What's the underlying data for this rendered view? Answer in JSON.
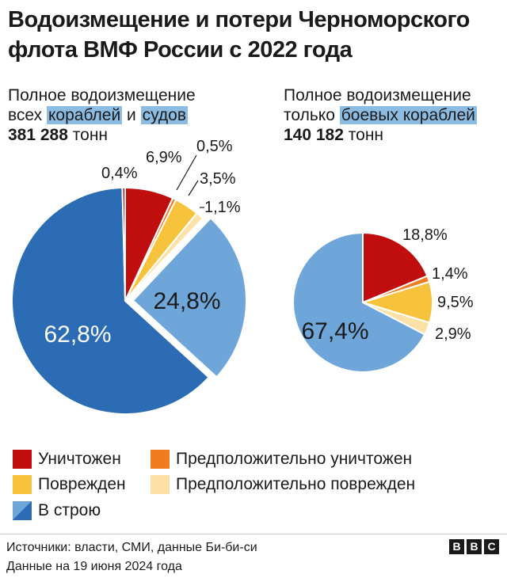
{
  "title": "Водоизмещение и потери Черноморского флота ВМФ России с 2022 года",
  "left": {
    "line1": "Полное водоизмещение",
    "line2_a": "всех ",
    "line2_b": "кораблей",
    "line2_c": " и ",
    "line2_d": "судов",
    "total_num": "381 288",
    "total_unit": " тонн"
  },
  "right": {
    "line1": "Полное водоизмещение",
    "line2_a": "только ",
    "line2_b": "боевых кораблей",
    "total_num": "140 182",
    "total_unit": " тонн"
  },
  "colors": {
    "destroyed": "#c00e0e",
    "presumed_destroyed": "#f07c22",
    "damaged": "#f7c33c",
    "presumed_damaged": "#fbe1a6",
    "in_service_ships": "#2b6cb4",
    "in_service_vessels": "#6ea6da",
    "in_service_combat": "#6ea6da"
  },
  "chart_data": [
    {
      "type": "pie",
      "name": "all",
      "slices": [
        {
          "key": "destroyed",
          "value": 6.9,
          "label": "6,9%"
        },
        {
          "key": "presumed_destroyed",
          "value": 0.5,
          "label": "0,5%"
        },
        {
          "key": "damaged",
          "value": 3.5,
          "label": "3,5%"
        },
        {
          "key": "presumed_damaged",
          "value": 1.1,
          "label": "1,1%"
        },
        {
          "key": "in_service_vessels",
          "value": 24.8,
          "label": "24,8%"
        },
        {
          "key": "in_service_ships",
          "value": 62.8,
          "label": "62,8%"
        },
        {
          "key": "destroyed",
          "value": 0.4,
          "label": "0,4%"
        }
      ]
    },
    {
      "type": "pie",
      "name": "combat",
      "slices": [
        {
          "key": "destroyed",
          "value": 18.8,
          "label": "18,8%"
        },
        {
          "key": "presumed_destroyed",
          "value": 1.4,
          "label": "1,4%"
        },
        {
          "key": "damaged",
          "value": 9.5,
          "label": "9,5%"
        },
        {
          "key": "presumed_damaged",
          "value": 2.9,
          "label": "2,9%"
        },
        {
          "key": "in_service_combat",
          "value": 67.4,
          "label": "67,4%"
        }
      ]
    }
  ],
  "legend": {
    "destroyed": "Уничтожен",
    "presumed_destroyed": "Предположительно уничтожен",
    "damaged": "Поврежден",
    "presumed_damaged": "Предположительно поврежден",
    "in_service": "В строю"
  },
  "footer": {
    "sources": "Источники: власти, СМИ, данные Би-би-си",
    "date": "Данные на 19 июня 2024 года",
    "logo": [
      "B",
      "B",
      "C"
    ]
  }
}
